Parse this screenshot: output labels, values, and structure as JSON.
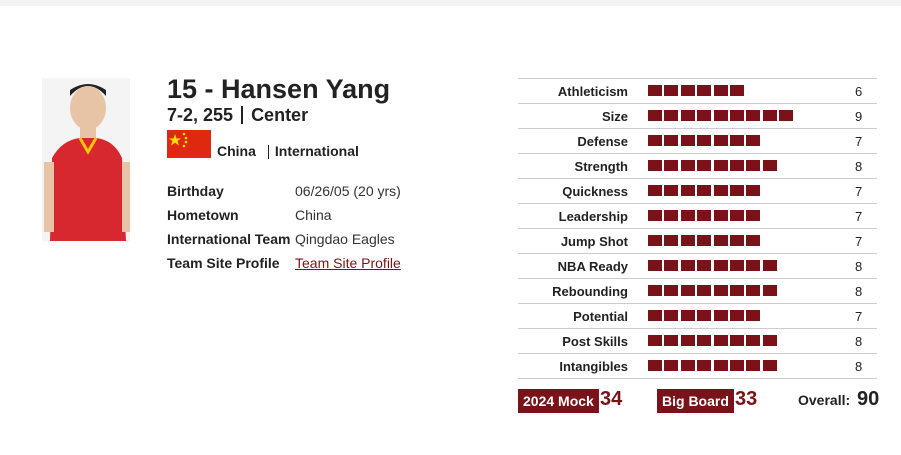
{
  "player": {
    "name": "15 - Hansen Yang",
    "height_weight": "7-2, 255",
    "position": "Center",
    "country": "China",
    "category": "International",
    "details": [
      {
        "label": "Birthday",
        "value": "06/26/05 (20 yrs)"
      },
      {
        "label": "Hometown",
        "value": "China"
      },
      {
        "label": "International Team",
        "value": "Qingdao Eagles"
      },
      {
        "label": "Team Site Profile",
        "value": "Team Site Profile"
      }
    ]
  },
  "ratings": [
    {
      "label": "Athleticism",
      "value": 6
    },
    {
      "label": "Size",
      "value": 9
    },
    {
      "label": "Defense",
      "value": 7
    },
    {
      "label": "Strength",
      "value": 8
    },
    {
      "label": "Quickness",
      "value": 7
    },
    {
      "label": "Leadership",
      "value": 7
    },
    {
      "label": "Jump Shot",
      "value": 7
    },
    {
      "label": "NBA Ready",
      "value": 8
    },
    {
      "label": "Rebounding",
      "value": 8
    },
    {
      "label": "Potential",
      "value": 7
    },
    {
      "label": "Post Skills",
      "value": 8
    },
    {
      "label": "Intangibles",
      "value": 8
    }
  ],
  "footer": {
    "mock_label": "2024 Mock",
    "mock_value": 34,
    "board_label": "Big Board",
    "board_value": 33,
    "overall_label": "Overall:",
    "overall_value": 90
  }
}
